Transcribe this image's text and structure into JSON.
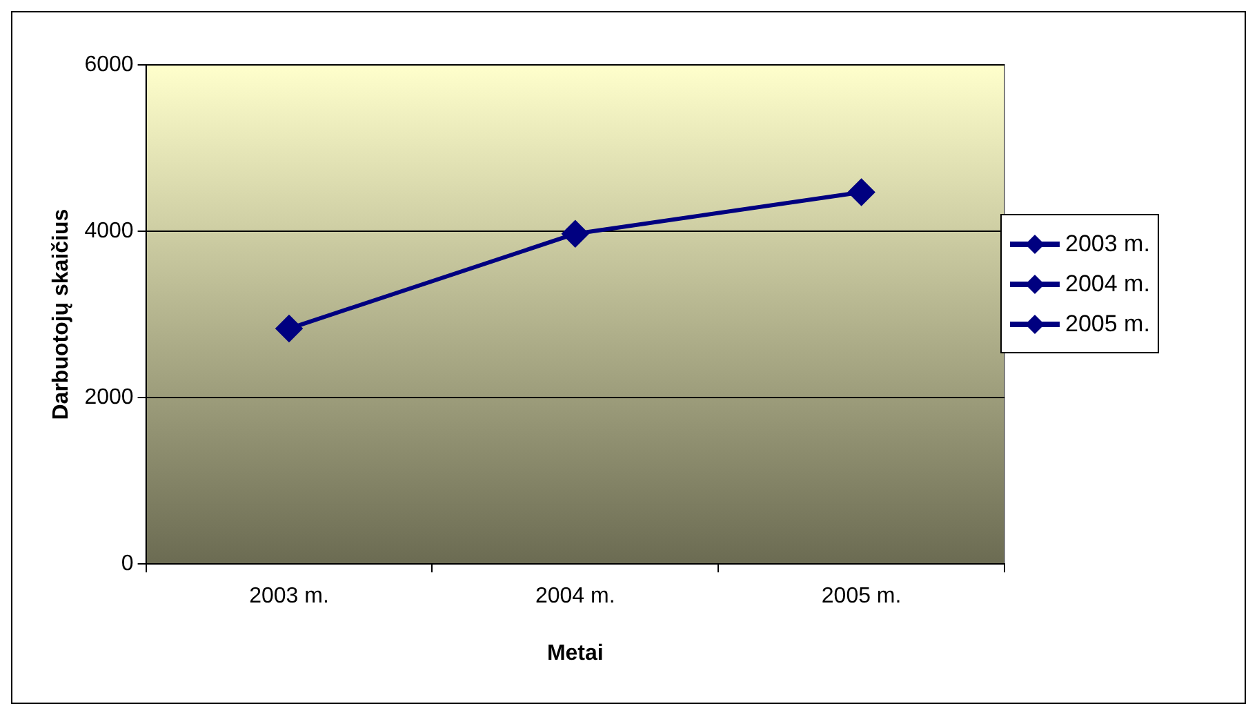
{
  "chart_data": {
    "type": "line",
    "xlabel": "Metai",
    "ylabel": "Darbuotojų skaičius",
    "categories": [
      "2003 m.",
      "2004 m.",
      "2005 m."
    ],
    "series": [
      {
        "color": "#000080",
        "values": [
          2830,
          3970,
          4470
        ]
      }
    ],
    "ylim": [
      0,
      6000
    ],
    "yticks": [
      0,
      2000,
      4000,
      6000
    ],
    "grid": "y",
    "marker": "diamond",
    "line_style": "solid"
  }
}
